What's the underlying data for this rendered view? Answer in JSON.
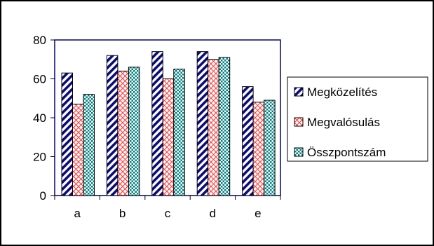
{
  "chart_data": {
    "type": "bar",
    "categories": [
      "a",
      "b",
      "c",
      "d",
      "e"
    ],
    "series": [
      {
        "name": "Megközelítés",
        "values": [
          63,
          72,
          74,
          74,
          56
        ],
        "color": "#0a0a7a",
        "pattern": "diagonal-stripes"
      },
      {
        "name": "Megvalósulás",
        "values": [
          47,
          64,
          60,
          70,
          48
        ],
        "color": "#ff3c3c",
        "pattern": "crosshatch"
      },
      {
        "name": "Összpontszám",
        "values": [
          52,
          66,
          65,
          71,
          49
        ],
        "color": "#008080",
        "pattern": "dots"
      }
    ],
    "ylim": [
      0,
      80
    ],
    "yticks": [
      "0",
      "20",
      "40",
      "60",
      "80"
    ],
    "xlabel": "",
    "ylabel": "",
    "title": "",
    "legend_position": "right",
    "plot_area_border_color": "#00007f",
    "grid": false
  }
}
